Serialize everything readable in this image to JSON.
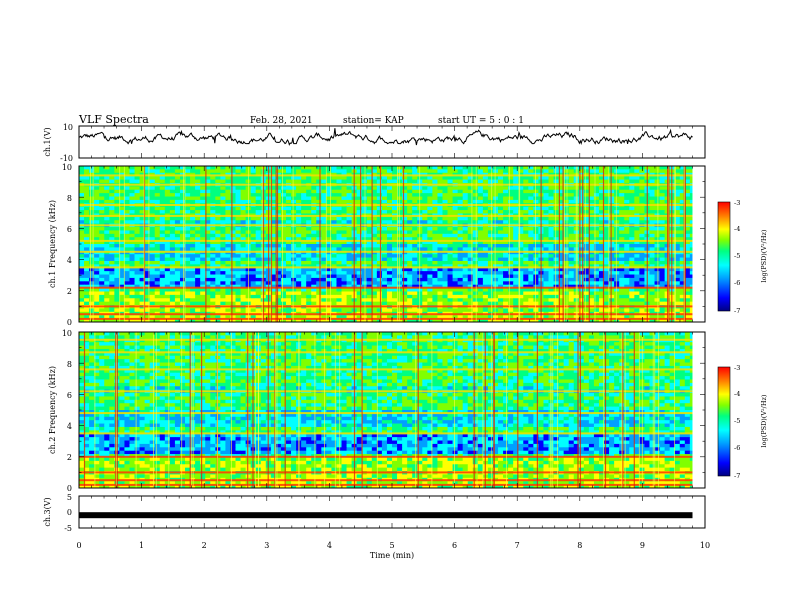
{
  "header": {
    "title": "VLF Spectra",
    "date": "Feb. 28, 2021",
    "station": "station= KAP",
    "start_time": "start UT =  5 : 0 : 1"
  },
  "colors": {
    "colormap": [
      "#000080",
      "#0000ff",
      "#00a0ff",
      "#00ffff",
      "#00ff80",
      "#80ff00",
      "#ffff00",
      "#ff8000",
      "#ff0000"
    ],
    "trace": "#000000"
  },
  "chart_data": [
    {
      "type": "line",
      "panel": "ch1-waveform",
      "ylabel": "ch.1(V)",
      "ylim": [
        -10,
        10
      ],
      "yticks": [
        "10",
        "-10"
      ],
      "x_range_min": [
        0,
        9.8
      ],
      "approx_y_mean": 2.5,
      "note_values": "noisy waveform, mostly between -1 and 10 V"
    },
    {
      "type": "heatmap",
      "panel": "ch1-spectrogram",
      "ylabel": "ch.1 Frequency (kHz)",
      "ylim": [
        0,
        10
      ],
      "yticks": [
        "0",
        "2",
        "4",
        "6",
        "8",
        "10"
      ],
      "xlim": [
        0,
        10
      ],
      "colorbar": {
        "label": "log(PSD)(V²/Hz)",
        "range": [
          -7,
          -3
        ],
        "ticks": [
          "-3",
          "-4",
          "-5",
          "-6",
          "-7"
        ]
      },
      "horizontal_lines_khz": [
        0.2,
        0.5,
        1.0,
        2.2,
        3.5,
        4.5,
        5.2,
        6.2,
        6.8,
        7.5,
        8.8,
        9.4
      ]
    },
    {
      "type": "heatmap",
      "panel": "ch2-spectrogram",
      "ylabel": "ch.2 Frequency (kHz)",
      "ylim": [
        0,
        10
      ],
      "yticks": [
        "0",
        "2",
        "4",
        "6",
        "8",
        "10"
      ],
      "xlim": [
        0,
        10
      ],
      "colorbar": {
        "label": "log(PSD)(V²/Hz)",
        "range": [
          -7,
          -3
        ],
        "ticks": [
          "-3",
          "-4",
          "-5",
          "-6",
          "-7"
        ]
      },
      "horizontal_lines_khz": [
        0.2,
        0.5,
        1.0,
        2.0,
        3.5,
        4.8,
        6.2,
        7.6,
        8.7,
        9.5
      ]
    },
    {
      "type": "line",
      "panel": "ch3-waveform",
      "ylabel": "ch.3(V)",
      "ylim": [
        -5,
        5
      ],
      "yticks": [
        "5",
        "0",
        "-5"
      ],
      "x_range_min": [
        0,
        9.8
      ],
      "level": -1
    }
  ],
  "x_axis": {
    "label": "Time (min)",
    "range": [
      0,
      10
    ],
    "ticks": [
      "0",
      "1",
      "2",
      "3",
      "4",
      "5",
      "6",
      "7",
      "8",
      "9",
      "10"
    ]
  }
}
